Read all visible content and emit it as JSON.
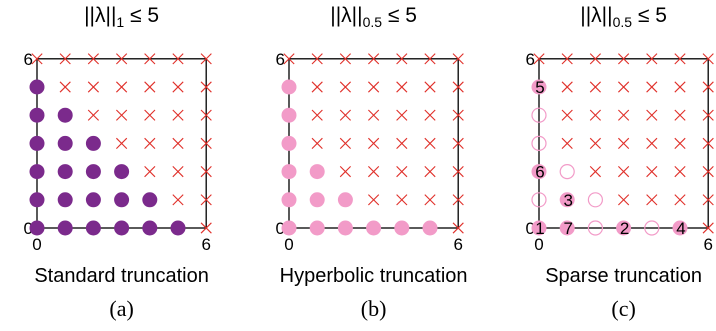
{
  "panels": [
    {
      "title": {
        "pre": "||λ||",
        "sub": "1",
        "post": " ≤ 5"
      },
      "caption": "Standard truncation",
      "panel_label": "(a)",
      "marker": "filled-circle",
      "marker_color": "#7B2A8C",
      "included": [
        [
          0,
          0
        ],
        [
          1,
          0
        ],
        [
          2,
          0
        ],
        [
          3,
          0
        ],
        [
          4,
          0
        ],
        [
          5,
          0
        ],
        [
          0,
          1
        ],
        [
          1,
          1
        ],
        [
          2,
          1
        ],
        [
          3,
          1
        ],
        [
          4,
          1
        ],
        [
          0,
          2
        ],
        [
          1,
          2
        ],
        [
          2,
          2
        ],
        [
          3,
          2
        ],
        [
          0,
          3
        ],
        [
          1,
          3
        ],
        [
          2,
          3
        ],
        [
          0,
          4
        ],
        [
          1,
          4
        ],
        [
          0,
          5
        ]
      ],
      "order_labels": []
    },
    {
      "title": {
        "pre": "||λ||",
        "sub": "0.5",
        "post": " ≤ 5"
      },
      "caption": "Hyperbolic truncation",
      "panel_label": "(b)",
      "marker": "filled-circle",
      "marker_color": "#F29BC8",
      "included": [
        [
          0,
          0
        ],
        [
          1,
          0
        ],
        [
          2,
          0
        ],
        [
          3,
          0
        ],
        [
          4,
          0
        ],
        [
          5,
          0
        ],
        [
          0,
          1
        ],
        [
          1,
          1
        ],
        [
          2,
          1
        ],
        [
          0,
          2
        ],
        [
          1,
          2
        ],
        [
          0,
          3
        ],
        [
          0,
          4
        ],
        [
          0,
          5
        ]
      ],
      "order_labels": []
    },
    {
      "title": {
        "pre": "||λ||",
        "sub": "0.5",
        "post": " ≤ 5"
      },
      "caption": "Sparse truncation",
      "panel_label": "(c)",
      "marker": "mixed",
      "marker_color": "#F29BC8",
      "included_filled": [
        [
          0,
          0
        ],
        [
          1,
          0
        ],
        [
          3,
          0
        ],
        [
          5,
          0
        ],
        [
          1,
          1
        ],
        [
          0,
          2
        ],
        [
          0,
          5
        ]
      ],
      "included_open": [
        [
          2,
          0
        ],
        [
          4,
          0
        ],
        [
          0,
          1
        ],
        [
          2,
          1
        ],
        [
          0,
          3
        ],
        [
          0,
          4
        ],
        [
          1,
          2
        ]
      ],
      "order_labels": [
        {
          "at": [
            0,
            5
          ],
          "text": "5"
        },
        {
          "at": [
            0,
            2
          ],
          "text": "6"
        },
        {
          "at": [
            1,
            1
          ],
          "text": "3"
        },
        {
          "at": [
            0,
            0
          ],
          "text": "1"
        },
        {
          "at": [
            1,
            0
          ],
          "text": "7"
        },
        {
          "at": [
            3,
            0
          ],
          "text": "2"
        },
        {
          "at": [
            5,
            0
          ],
          "text": "4"
        }
      ]
    }
  ],
  "axis": {
    "min_label": "0",
    "max_label": "6",
    "y_max_label": "6",
    "y_min_label": "0"
  },
  "excluded_marker_color": "#E0302A"
}
